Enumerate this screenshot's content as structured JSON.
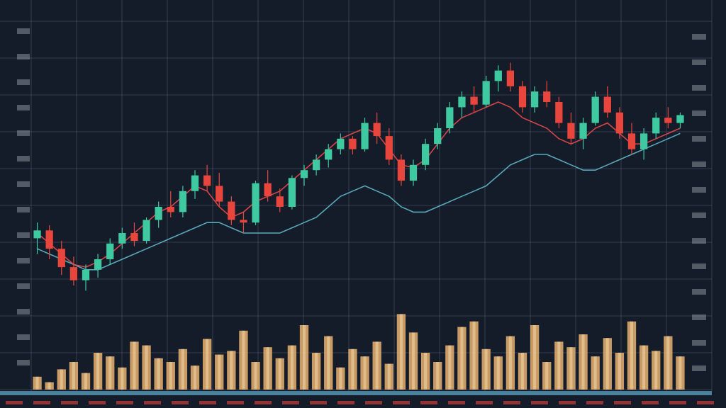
{
  "colors": {
    "background": "#141c2a",
    "grid": "#5d6b80",
    "up": "#3ec9a0",
    "down": "#e8453c",
    "volume": "#e8b070",
    "volume_highlight": "#f2d9a8",
    "ma_fast": "#e84a4a",
    "ma_slow": "#5fb8c8",
    "axis_text": "#c8d0da",
    "axis_bar": "#6fc3e6"
  },
  "chart_data": [
    {
      "type": "candlestick",
      "title": "",
      "xlabel": "",
      "ylabel": "",
      "ylim": [
        0,
        100
      ],
      "grid": true,
      "legend": "none",
      "candles": [
        {
          "o": 28,
          "h": 34,
          "l": 22,
          "c": 31
        },
        {
          "o": 31,
          "h": 33,
          "l": 20,
          "c": 24
        },
        {
          "o": 24,
          "h": 27,
          "l": 14,
          "c": 17
        },
        {
          "o": 17,
          "h": 21,
          "l": 10,
          "c": 12
        },
        {
          "o": 12,
          "h": 18,
          "l": 8,
          "c": 16
        },
        {
          "o": 16,
          "h": 22,
          "l": 13,
          "c": 20
        },
        {
          "o": 20,
          "h": 28,
          "l": 18,
          "c": 26
        },
        {
          "o": 26,
          "h": 32,
          "l": 24,
          "c": 30
        },
        {
          "o": 30,
          "h": 34,
          "l": 25,
          "c": 27
        },
        {
          "o": 27,
          "h": 36,
          "l": 26,
          "c": 35
        },
        {
          "o": 35,
          "h": 42,
          "l": 32,
          "c": 40
        },
        {
          "o": 40,
          "h": 46,
          "l": 36,
          "c": 38
        },
        {
          "o": 38,
          "h": 48,
          "l": 36,
          "c": 46
        },
        {
          "o": 46,
          "h": 54,
          "l": 43,
          "c": 52
        },
        {
          "o": 52,
          "h": 56,
          "l": 46,
          "c": 48
        },
        {
          "o": 48,
          "h": 53,
          "l": 40,
          "c": 42
        },
        {
          "o": 42,
          "h": 44,
          "l": 33,
          "c": 35
        },
        {
          "o": 35,
          "h": 38,
          "l": 30,
          "c": 34
        },
        {
          "o": 34,
          "h": 50,
          "l": 33,
          "c": 49
        },
        {
          "o": 49,
          "h": 54,
          "l": 42,
          "c": 44
        },
        {
          "o": 44,
          "h": 47,
          "l": 38,
          "c": 40
        },
        {
          "o": 40,
          "h": 52,
          "l": 39,
          "c": 51
        },
        {
          "o": 51,
          "h": 56,
          "l": 48,
          "c": 54
        },
        {
          "o": 54,
          "h": 60,
          "l": 52,
          "c": 58
        },
        {
          "o": 58,
          "h": 64,
          "l": 55,
          "c": 62
        },
        {
          "o": 62,
          "h": 68,
          "l": 60,
          "c": 66
        },
        {
          "o": 66,
          "h": 67,
          "l": 60,
          "c": 62
        },
        {
          "o": 62,
          "h": 74,
          "l": 61,
          "c": 72
        },
        {
          "o": 72,
          "h": 76,
          "l": 64,
          "c": 67
        },
        {
          "o": 67,
          "h": 70,
          "l": 56,
          "c": 58
        },
        {
          "o": 58,
          "h": 60,
          "l": 48,
          "c": 50
        },
        {
          "o": 50,
          "h": 58,
          "l": 48,
          "c": 56
        },
        {
          "o": 56,
          "h": 66,
          "l": 54,
          "c": 64
        },
        {
          "o": 64,
          "h": 72,
          "l": 62,
          "c": 70
        },
        {
          "o": 70,
          "h": 80,
          "l": 68,
          "c": 78
        },
        {
          "o": 78,
          "h": 84,
          "l": 74,
          "c": 82
        },
        {
          "o": 82,
          "h": 86,
          "l": 76,
          "c": 79
        },
        {
          "o": 79,
          "h": 90,
          "l": 78,
          "c": 88
        },
        {
          "o": 88,
          "h": 94,
          "l": 84,
          "c": 92
        },
        {
          "o": 92,
          "h": 95,
          "l": 84,
          "c": 86
        },
        {
          "o": 86,
          "h": 88,
          "l": 76,
          "c": 78
        },
        {
          "o": 78,
          "h": 86,
          "l": 76,
          "c": 84
        },
        {
          "o": 84,
          "h": 88,
          "l": 78,
          "c": 80
        },
        {
          "o": 80,
          "h": 82,
          "l": 70,
          "c": 72
        },
        {
          "o": 72,
          "h": 76,
          "l": 64,
          "c": 66
        },
        {
          "o": 66,
          "h": 74,
          "l": 62,
          "c": 72
        },
        {
          "o": 72,
          "h": 84,
          "l": 71,
          "c": 82
        },
        {
          "o": 82,
          "h": 86,
          "l": 74,
          "c": 76
        },
        {
          "o": 76,
          "h": 78,
          "l": 66,
          "c": 68
        },
        {
          "o": 68,
          "h": 72,
          "l": 60,
          "c": 62
        },
        {
          "o": 62,
          "h": 70,
          "l": 58,
          "c": 68
        },
        {
          "o": 68,
          "h": 76,
          "l": 66,
          "c": 74
        },
        {
          "o": 74,
          "h": 78,
          "l": 70,
          "c": 72
        },
        {
          "o": 72,
          "h": 76,
          "l": 70,
          "c": 75
        }
      ],
      "ma_fast": [
        30,
        26,
        22,
        18,
        17,
        19,
        22,
        26,
        30,
        34,
        38,
        40,
        44,
        48,
        46,
        40,
        36,
        38,
        42,
        44,
        46,
        50,
        54,
        58,
        62,
        66,
        68,
        70,
        68,
        62,
        56,
        55,
        58,
        64,
        70,
        74,
        76,
        78,
        80,
        78,
        74,
        72,
        70,
        66,
        64,
        66,
        70,
        72,
        68,
        64,
        64,
        66,
        68,
        70
      ],
      "ma_slow": [
        24,
        22,
        20,
        18,
        16,
        16,
        18,
        20,
        22,
        24,
        26,
        28,
        30,
        32,
        34,
        34,
        32,
        30,
        30,
        30,
        30,
        32,
        34,
        36,
        40,
        44,
        46,
        48,
        46,
        44,
        40,
        38,
        38,
        40,
        42,
        44,
        46,
        48,
        52,
        56,
        58,
        60,
        60,
        58,
        56,
        54,
        54,
        56,
        58,
        60,
        62,
        64,
        66,
        68
      ],
      "volume_ylim": [
        0,
        100
      ],
      "volume": [
        14,
        8,
        22,
        30,
        18,
        40,
        36,
        24,
        52,
        48,
        34,
        30,
        44,
        26,
        55,
        38,
        42,
        64,
        30,
        46,
        34,
        48,
        70,
        40,
        58,
        24,
        44,
        36,
        52,
        28,
        82,
        62,
        40,
        30,
        48,
        68,
        74,
        44,
        36,
        58,
        40,
        70,
        30,
        52,
        46,
        60,
        36,
        56,
        40,
        74,
        48,
        42,
        58,
        36
      ]
    }
  ]
}
